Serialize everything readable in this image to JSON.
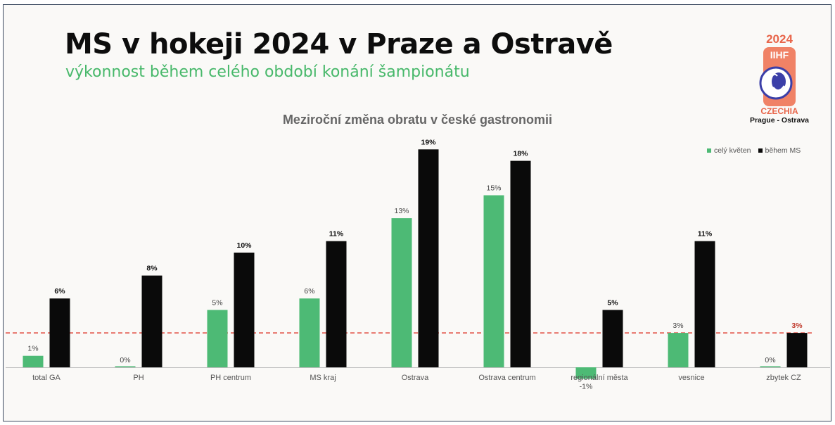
{
  "header": {
    "title": "MS v hokeji 2024 v Praze a Ostravě",
    "subtitle": "výkonnost během celého období konání šampionátu"
  },
  "logo": {
    "year": "2024",
    "brand": "IIHF",
    "country": "CZECHIA",
    "cities": "Prague - Ostrava"
  },
  "colors": {
    "green": "#4dba75",
    "black": "#0a0a0a",
    "reference_line": "#e0453a",
    "accent_label": "#c0392b"
  },
  "chart_data": {
    "type": "bar",
    "title": "Meziroční změna obratu v české gastronomii",
    "categories": [
      "total GA",
      "PH",
      "PH centrum",
      "MS kraj",
      "Ostrava",
      "Ostrava centrum",
      "regionální města",
      "vesnice",
      "zbytek CZ"
    ],
    "series": [
      {
        "name": "celý květen",
        "values": [
          1,
          0,
          5,
          6,
          13,
          15,
          -1,
          3,
          0
        ],
        "labels": [
          "1%",
          "0%",
          "5%",
          "6%",
          "13%",
          "15%",
          "-1%",
          "3%",
          "0%"
        ]
      },
      {
        "name": "během MS",
        "values": [
          6,
          8,
          10,
          11,
          19,
          18,
          5,
          11,
          3
        ],
        "labels": [
          "6%",
          "8%",
          "10%",
          "11%",
          "19%",
          "18%",
          "5%",
          "11%",
          "3%"
        ]
      }
    ],
    "reference_line": {
      "value": 3,
      "style": "dashed"
    },
    "legend_position": "top-right",
    "ylim": [
      -1,
      19
    ],
    "grid": false
  }
}
